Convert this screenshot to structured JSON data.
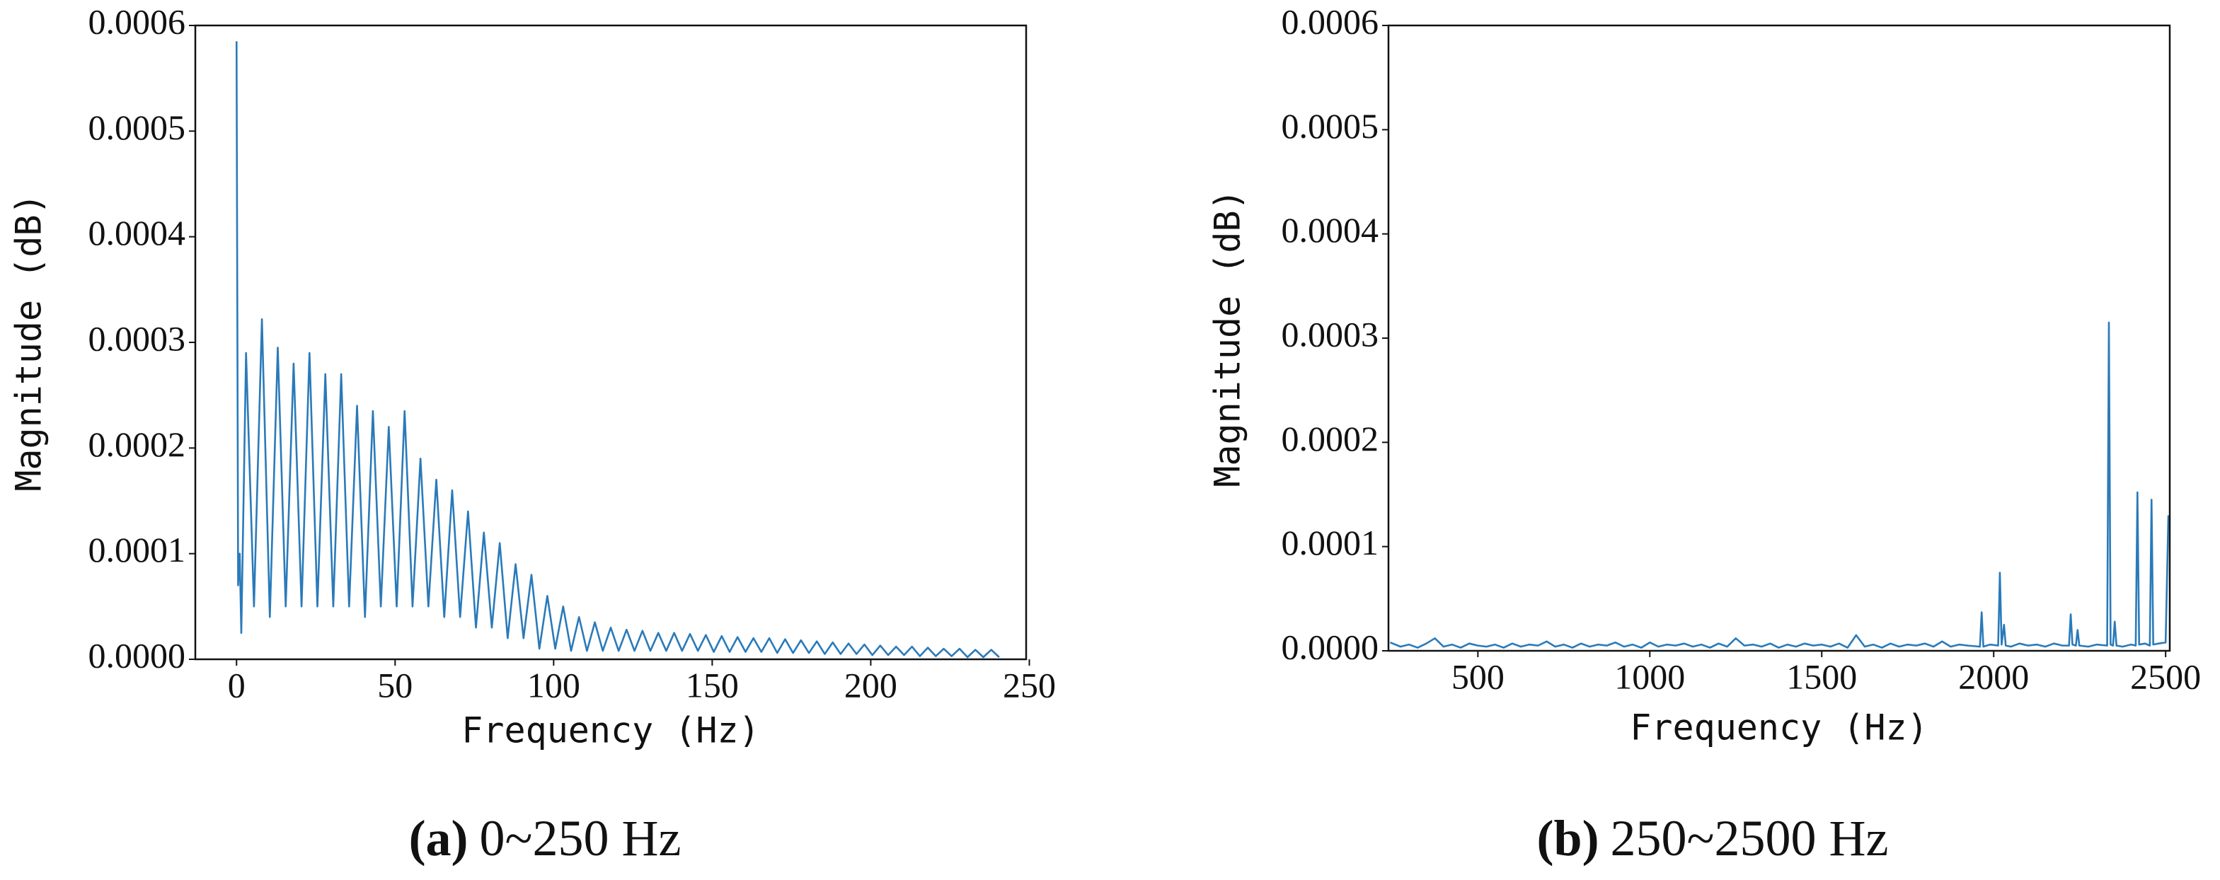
{
  "chart_data": [
    {
      "type": "line",
      "caption_label": "(a)",
      "caption": "0~250 Hz",
      "xlabel": "Frequency (Hz)",
      "ylabel": "Magnitude (dB)",
      "color": "#2a7ab9",
      "xlim": [
        -13,
        249
      ],
      "ylim": [
        0,
        0.0006
      ],
      "xticks": [
        0,
        50,
        100,
        150,
        200,
        250
      ],
      "yticks": [
        {
          "value": 0,
          "label": "0.0000"
        },
        {
          "value": 0.0001,
          "label": "0.0001"
        },
        {
          "value": 0.0002,
          "label": "0.0002"
        },
        {
          "value": 0.0003,
          "label": "0.0003"
        },
        {
          "value": 0.0004,
          "label": "0.0004"
        },
        {
          "value": 0.0005,
          "label": "0.0005"
        },
        {
          "value": 0.0006,
          "label": "0.0006"
        }
      ],
      "x": [
        0,
        0.5,
        1,
        1.5,
        3,
        5.5,
        8,
        10.5,
        13,
        15.5,
        18,
        20.5,
        23,
        25.5,
        28,
        30.5,
        33,
        35.5,
        38,
        40.5,
        43,
        45.5,
        48,
        50.5,
        53,
        55.5,
        58,
        60.5,
        63,
        65.5,
        68,
        70.5,
        73,
        75.5,
        78,
        80.5,
        83,
        85.5,
        88,
        90.5,
        93,
        95.5,
        98,
        100.5,
        103,
        105.5,
        108,
        110.5,
        113,
        115.5,
        118,
        120.5,
        123,
        125.5,
        128,
        130.5,
        133,
        135.5,
        138,
        140.5,
        143,
        145.5,
        148,
        150.5,
        153,
        155.5,
        158,
        160.5,
        163,
        165.5,
        168,
        170.5,
        173,
        175.5,
        178,
        180.5,
        183,
        185.5,
        188,
        190.5,
        193,
        195.5,
        198,
        200.5,
        203,
        205.5,
        208,
        210.5,
        213,
        215.5,
        218,
        220.5,
        223,
        225.5,
        228,
        230.5,
        233,
        235.5,
        238,
        240.5
      ],
      "values": [
        0.000585,
        7e-05,
        0.0001,
        2.5e-05,
        0.00029,
        5e-05,
        0.000322,
        4e-05,
        0.000295,
        5e-05,
        0.00028,
        5e-05,
        0.00029,
        5e-05,
        0.00027,
        5e-05,
        0.00027,
        5e-05,
        0.00024,
        4e-05,
        0.000235,
        5e-05,
        0.00022,
        5e-05,
        0.000235,
        5e-05,
        0.00019,
        5e-05,
        0.00017,
        4e-05,
        0.00016,
        4e-05,
        0.00014,
        3e-05,
        0.00012,
        3e-05,
        0.00011,
        2e-05,
        9e-05,
        2e-05,
        8e-05,
        1e-05,
        6e-05,
        1e-05,
        5e-05,
        8e-06,
        4e-05,
        8e-06,
        3.5e-05,
        8e-06,
        3e-05,
        8e-06,
        2.8e-05,
        8e-06,
        2.7e-05,
        8e-06,
        2.5e-05,
        8e-06,
        2.5e-05,
        8e-06,
        2.4e-05,
        8e-06,
        2.3e-05,
        7e-06,
        2.2e-05,
        7e-06,
        2.1e-05,
        7e-06,
        2e-05,
        7e-06,
        2e-05,
        6e-06,
        1.9e-05,
        6e-06,
        1.8e-05,
        6e-06,
        1.7e-05,
        5e-06,
        1.6e-05,
        5e-06,
        1.5e-05,
        5e-06,
        1.4e-05,
        4e-06,
        1.3e-05,
        4e-06,
        1.2e-05,
        4e-06,
        1.2e-05,
        3e-06,
        1.1e-05,
        3e-06,
        1e-05,
        3e-06,
        1e-05,
        2e-06,
        9e-06,
        2e-06,
        9e-06,
        2e-06
      ]
    },
    {
      "type": "line",
      "caption_label": "(b)",
      "caption": "250~2500 Hz",
      "xlabel": "Frequency (Hz)",
      "ylabel": "Magnitude (dB)",
      "color": "#2a7ab9",
      "xlim": [
        240,
        2512
      ],
      "ylim": [
        0,
        0.0006
      ],
      "xticks": [
        500,
        1000,
        1500,
        2000,
        2500
      ],
      "yticks": [
        {
          "value": 0,
          "label": "0.0000"
        },
        {
          "value": 0.0001,
          "label": "0.0001"
        },
        {
          "value": 0.0002,
          "label": "0.0002"
        },
        {
          "value": 0.0003,
          "label": "0.0003"
        },
        {
          "value": 0.0004,
          "label": "0.0004"
        },
        {
          "value": 0.0005,
          "label": "0.0005"
        },
        {
          "value": 0.0006,
          "label": "0.0006"
        }
      ],
      "x": [
        245,
        275,
        300,
        325,
        350,
        375,
        400,
        425,
        450,
        475,
        500,
        525,
        550,
        575,
        600,
        625,
        650,
        675,
        700,
        725,
        750,
        775,
        800,
        825,
        850,
        875,
        900,
        925,
        950,
        975,
        1000,
        1025,
        1050,
        1075,
        1100,
        1125,
        1150,
        1175,
        1200,
        1225,
        1250,
        1275,
        1300,
        1325,
        1350,
        1375,
        1400,
        1425,
        1450,
        1475,
        1500,
        1525,
        1550,
        1575,
        1600,
        1625,
        1650,
        1675,
        1700,
        1725,
        1750,
        1775,
        1800,
        1825,
        1850,
        1875,
        1900,
        1925,
        1960,
        1965,
        1970,
        1990,
        2013,
        2018,
        2023,
        2030,
        2035,
        2050,
        2075,
        2100,
        2125,
        2150,
        2175,
        2200,
        2219,
        2224,
        2229,
        2239,
        2244,
        2249,
        2275,
        2300,
        2330,
        2335,
        2340,
        2347,
        2352,
        2357,
        2375,
        2400,
        2413,
        2418,
        2423,
        2440,
        2454,
        2459,
        2464,
        2480,
        2500,
        2508
      ],
      "values": [
        8e-06,
        4e-06,
        6e-06,
        3e-06,
        7e-06,
        1.2e-05,
        4e-06,
        6e-06,
        3e-06,
        7e-06,
        5e-06,
        4e-06,
        6e-06,
        3e-06,
        7e-06,
        4e-06,
        6e-06,
        5e-06,
        9e-06,
        4e-06,
        6e-06,
        3e-06,
        7e-06,
        4e-06,
        6e-06,
        5e-06,
        8e-06,
        4e-06,
        6e-06,
        3e-06,
        8e-06,
        4e-06,
        6e-06,
        5e-06,
        7e-06,
        4e-06,
        6e-06,
        3e-06,
        7e-06,
        4e-06,
        1.2e-05,
        5e-06,
        6e-06,
        4e-06,
        7e-06,
        3e-06,
        6e-06,
        4e-06,
        7e-06,
        5e-06,
        6e-06,
        4e-06,
        7e-06,
        3e-06,
        1.5e-05,
        4e-06,
        6e-06,
        3e-06,
        7e-06,
        4e-06,
        6e-06,
        5e-06,
        7e-06,
        4e-06,
        9e-06,
        4e-06,
        6e-06,
        5e-06,
        4e-06,
        3.7e-05,
        4e-06,
        6e-06,
        5e-06,
        7.5e-05,
        6e-06,
        2.5e-05,
        5e-06,
        4e-06,
        7e-06,
        5e-06,
        6e-06,
        4e-06,
        7e-06,
        5e-06,
        5e-06,
        3.5e-05,
        6e-06,
        5e-06,
        2e-05,
        5e-06,
        4e-06,
        6e-06,
        5e-06,
        0.000315,
        6e-06,
        5e-06,
        2.8e-05,
        5e-06,
        4e-06,
        6e-06,
        5e-06,
        0.000152,
        6e-06,
        7e-06,
        5e-06,
        0.000145,
        6e-06,
        7e-06,
        8e-06,
        0.00013
      ]
    }
  ]
}
